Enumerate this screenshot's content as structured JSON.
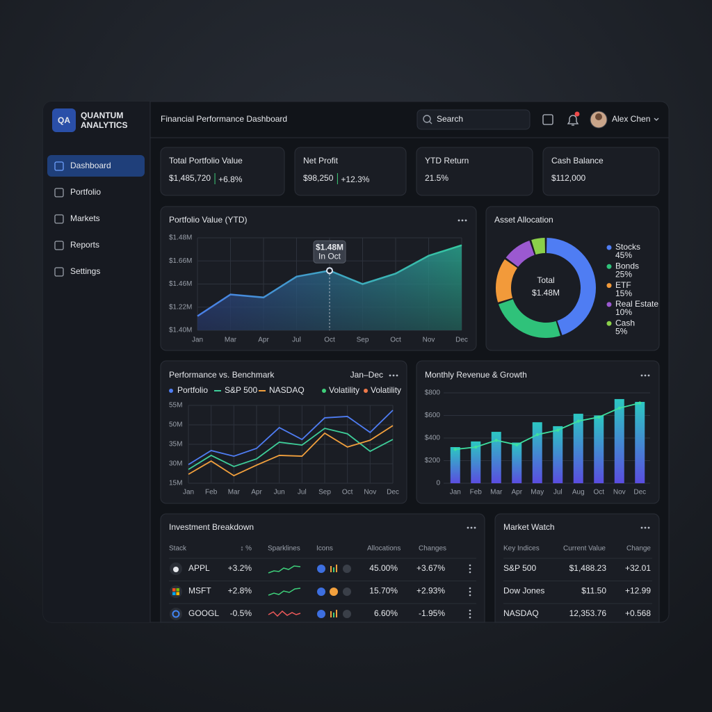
{
  "sidebar": {
    "logo": "QA",
    "brand": [
      "QUANTUM",
      "ANALYTICS"
    ],
    "nav": [
      "Dashboard",
      "Portfolio",
      "Markets",
      "Reports",
      "Settings"
    ],
    "active": 0
  },
  "header": {
    "title": "Financial Performance Dashboard",
    "search_placeholder": "Search",
    "user": "Alex Chen"
  },
  "kpis": [
    {
      "label": "Total Portfolio Value",
      "value": "$1,485,720",
      "change": "+6.8%"
    },
    {
      "label": "Net Profit",
      "value": "$98,250",
      "change": "+12.3%"
    },
    {
      "label": "YTD Return",
      "value": "21.5%"
    },
    {
      "label": "Cash Balance",
      "value": "$112,000"
    }
  ],
  "chart_data": [
    {
      "type": "area",
      "title": "Portfolio Value (YTD)",
      "categories": [
        "Jan",
        "Mar",
        "Apr",
        "Jul",
        "Oct",
        "Sep",
        "Oct",
        "Nov",
        "Dec"
      ],
      "values": [
        1.419,
        1.448,
        1.444,
        1.472,
        1.48,
        1.462,
        1.476,
        1.5,
        1.514
      ],
      "y_labels": [
        "$1.48M",
        "$1.66M",
        "$1.46M",
        "$1.22M",
        "$1.40M"
      ],
      "ylim": [
        1.4,
        1.524
      ],
      "colors": [
        "#4a7fe8",
        "#35c9a0"
      ],
      "grid": true,
      "tooltip": {
        "value": 1.48,
        "label": "$1.48M",
        "text": "In Oct"
      }
    },
    {
      "type": "pie",
      "title": "Asset Allocation",
      "donut": true,
      "center_label": "Total",
      "center_value": "$1.48M",
      "categories": [
        "Stocks",
        "Bonds",
        "ETF",
        "Real Estate",
        "Cash"
      ],
      "values": [
        45,
        25,
        15,
        10,
        5
      ],
      "value_labels": [
        "45%",
        "25%",
        "15%",
        "10%",
        "5%"
      ],
      "colors": [
        "#4f7df3",
        "#2fc27a",
        "#f29a3a",
        "#9b59d0",
        "#8bd04a"
      ]
    },
    {
      "type": "line",
      "title": "Performance vs. Benchmark",
      "range_label": "Jan–Dec",
      "categories": [
        "Jan",
        "Feb",
        "Mar",
        "Apr",
        "Jun",
        "Jul",
        "Sep",
        "Oct",
        "Nov",
        "Dec"
      ],
      "series": [
        {
          "name": "Portfolio",
          "color": "#4f7df3",
          "marker": "dot",
          "values": [
            24.6,
            31.8,
            28.9,
            32.9,
            43.6,
            37.5,
            48.6,
            49.3,
            41.1,
            52.5
          ]
        },
        {
          "name": "S&P 500",
          "color": "#3ecf9a",
          "marker": "line",
          "values": [
            22.1,
            29.3,
            23.6,
            27.5,
            36.1,
            34.6,
            43.2,
            40.4,
            31.4,
            37.5
          ]
        },
        {
          "name": "NASDAQ",
          "color": "#f2a03d",
          "marker": "line",
          "values": [
            19.6,
            26.4,
            18.9,
            24.3,
            29.3,
            28.9,
            40.7,
            33.6,
            37.1,
            44.6
          ]
        }
      ],
      "extra_legend": [
        {
          "name": "Volatility",
          "color": "#3ecf7a"
        },
        {
          "name": "Volatility",
          "color": "#f07a4a"
        }
      ],
      "y_labels": [
        "55M",
        "50M",
        "35M",
        "30M",
        "15M"
      ],
      "ylim": [
        15,
        55
      ],
      "grid": true
    },
    {
      "type": "bar",
      "title": "Monthly Revenue & Growth",
      "categories": [
        "Jan",
        "Feb",
        "Mar",
        "Apr",
        "May",
        "Jul",
        "Aug",
        "Oct",
        "Nov",
        "Dec"
      ],
      "series": [
        {
          "type": "bar",
          "gradient": [
            "#2cc7c2",
            "#5a4de0"
          ],
          "values": [
            320,
            370,
            455,
            360,
            540,
            505,
            615,
            600,
            745,
            720
          ]
        },
        {
          "type": "line",
          "color": "#3ee0a0",
          "values": [
            300,
            320,
            380,
            340,
            430,
            470,
            550,
            585,
            665,
            710
          ]
        }
      ],
      "ylim": [
        0,
        800
      ],
      "yticks": [
        0,
        {
          "value": 200,
          "label": "$200"
        },
        {
          "value": 400,
          "label": "$400"
        },
        {
          "value": 600,
          "label": "$600"
        },
        {
          "value": 800,
          "label": "$800"
        }
      ],
      "grid": true
    }
  ],
  "tables": [
    {
      "title": "Investment Breakdown",
      "columns": [
        "Stack",
        "↕ %",
        "Sparklines",
        "Icons",
        "Allocations",
        "Changes"
      ],
      "rows": [
        {
          "stock": "APPL",
          "pct": "+3.2%",
          "allocation": "45.00%",
          "change": "+3.67%"
        },
        {
          "stock": "MSFT",
          "pct": "+2.8%",
          "allocation": "15.70%",
          "change": "+2.93%"
        },
        {
          "stock": "GOOGL",
          "pct": "-0.5%",
          "allocation": "6.60%",
          "change": "-1.95%"
        }
      ]
    },
    {
      "title": "Market Watch",
      "columns": [
        "Key Indices",
        "Current Value",
        "Change"
      ],
      "rows": [
        {
          "name": "S&P 500",
          "value": "$1,488.23",
          "change": "+32.01"
        },
        {
          "name": "Dow Jones",
          "value": "$11.50",
          "change": "+12.99"
        },
        {
          "name": "NASDAQ",
          "value": "12,353.76",
          "change": "+0.568"
        }
      ]
    }
  ]
}
